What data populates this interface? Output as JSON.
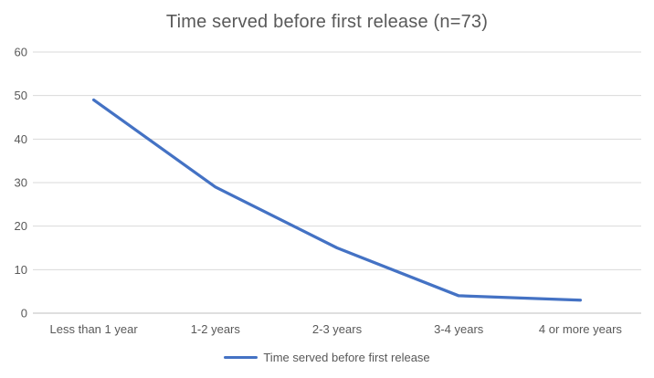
{
  "colors": {
    "line": "#4472C4",
    "text": "#595959",
    "gridline": "#D9D9D9",
    "axis": "#BFBFBF",
    "background": "#FFFFFF"
  },
  "legend": {
    "label": "Time served before first release"
  },
  "chart_data": {
    "type": "line",
    "title": "Time served before first release (n=73)",
    "categories": [
      "Less than 1 year",
      "1-2 years",
      "2-3 years",
      "3-4 years",
      "4 or more years"
    ],
    "series": [
      {
        "name": "Time served before first release",
        "values": [
          49,
          29,
          15,
          4,
          3
        ],
        "color": "#4472C4"
      }
    ],
    "xlabel": "",
    "ylabel": "",
    "ylim": [
      0,
      60
    ],
    "yticks": [
      0,
      10,
      20,
      30,
      40,
      50,
      60
    ],
    "grid": true,
    "legend_position": "bottom"
  }
}
